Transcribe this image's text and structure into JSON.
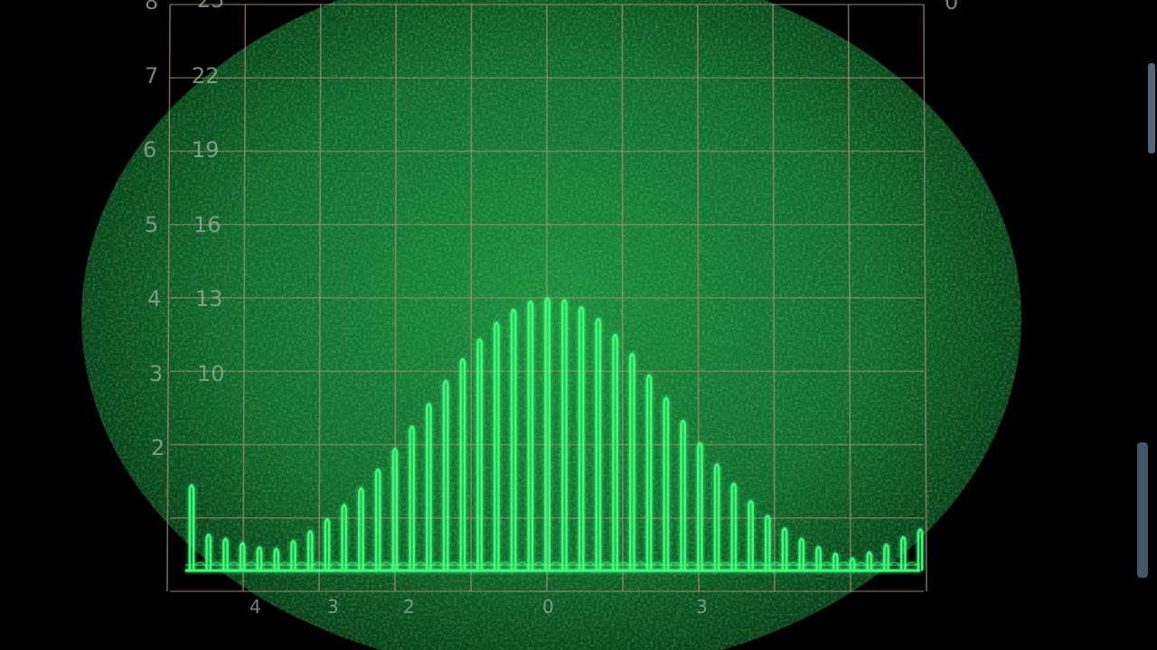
{
  "screen": {
    "trace_color": "#3dff7a",
    "phosphor_color": "#0f6a2b",
    "graticule_color": "#a88f74",
    "background_color": "#000000"
  },
  "graticule": {
    "columns": 10,
    "rows": 8,
    "left_scale": [
      "8",
      "7",
      "6",
      "5",
      "4",
      "3",
      "2"
    ],
    "right_scale": [
      "25",
      "22",
      "19",
      "16",
      "13",
      "10"
    ],
    "corner_right": "0",
    "bottom_scale": [
      "4",
      "3",
      "2",
      "0",
      "3"
    ]
  },
  "signal": {
    "description_kind": "pulse-train bell envelope",
    "pulse_count": 44,
    "peak_fraction_of_screen": 0.42
  }
}
